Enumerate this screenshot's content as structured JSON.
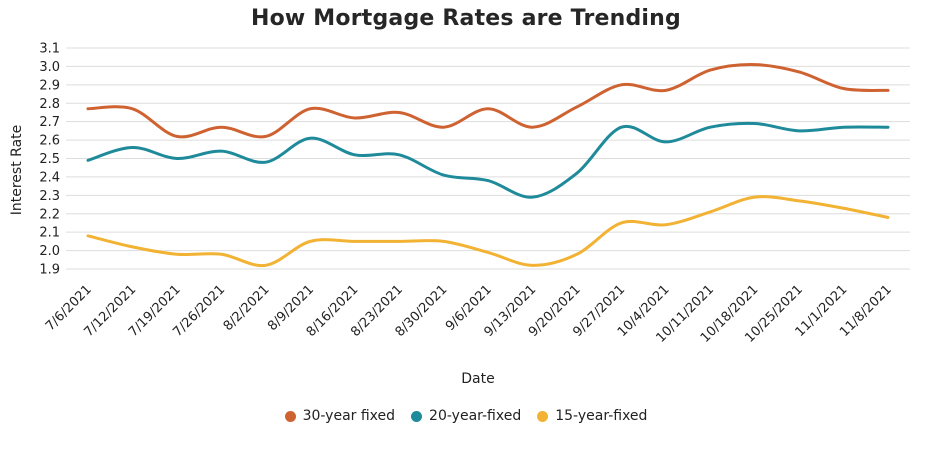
{
  "chart_data": {
    "type": "line",
    "title": "How Mortgage Rates are Trending",
    "xlabel": "Date",
    "ylabel": "Interest Rate",
    "categories": [
      "7/6/2021",
      "7/12/2021",
      "7/19/2021",
      "7/26/2021",
      "8/2/2021",
      "8/9/2021",
      "8/16/2021",
      "8/23/2021",
      "8/30/2021",
      "9/6/2021",
      "9/13/2021",
      "9/20/2021",
      "9/27/2021",
      "10/4/2021",
      "10/11/2021",
      "10/18/2021",
      "10/25/2021",
      "11/1/2021",
      "11/8/2021"
    ],
    "yticks": [
      "1.9",
      "2.0",
      "2.1",
      "2.2",
      "2.3",
      "2.4",
      "2.5",
      "2.6",
      "2.7",
      "2.8",
      "2.9",
      "3.0",
      "3.1"
    ],
    "ylim": [
      1.9,
      3.1
    ],
    "grid": true,
    "legend_position": "bottom",
    "series": [
      {
        "name": "30-year fixed",
        "color": "#cf6231",
        "values": [
          2.77,
          2.77,
          2.62,
          2.67,
          2.62,
          2.77,
          2.72,
          2.75,
          2.67,
          2.77,
          2.67,
          2.78,
          2.9,
          2.87,
          2.98,
          3.01,
          2.97,
          2.88,
          2.87
        ]
      },
      {
        "name": "20-year-fixed",
        "color": "#1e8a9a",
        "values": [
          2.49,
          2.56,
          2.5,
          2.54,
          2.48,
          2.61,
          2.52,
          2.52,
          2.41,
          2.38,
          2.29,
          2.42,
          2.67,
          2.59,
          2.67,
          2.69,
          2.65,
          2.67,
          2.67
        ]
      },
      {
        "name": "15-year-fixed",
        "color": "#f2b233",
        "values": [
          2.08,
          2.02,
          1.98,
          1.98,
          1.92,
          2.05,
          2.05,
          2.05,
          2.05,
          1.99,
          1.92,
          1.98,
          2.15,
          2.14,
          2.21,
          2.29,
          2.27,
          2.23,
          2.18
        ]
      }
    ]
  }
}
